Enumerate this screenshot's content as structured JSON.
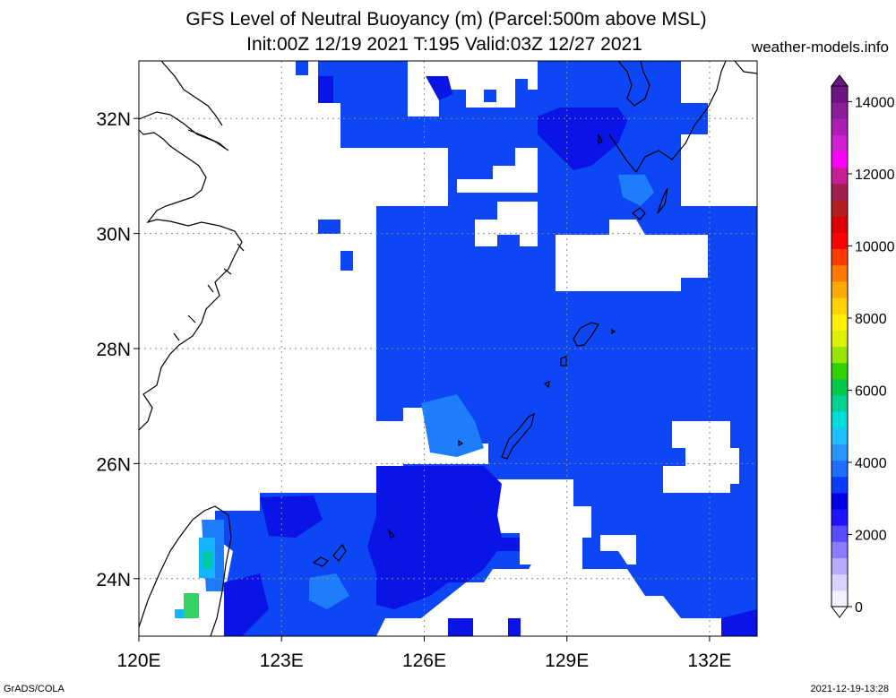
{
  "title_line1": "GFS Level of Neutral Buoyancy (m) (Parcel:500m above MSL)",
  "title_line2": "Init:00Z 12/19 2021 T:195 Valid:03Z 12/27 2021",
  "site": "weather-models.info",
  "credit_left": "GrADS/COLA",
  "credit_right": "2021-12-19-13:28",
  "map": {
    "lon_range": [
      120,
      133
    ],
    "lat_range": [
      23,
      33
    ],
    "lat_labels": [
      "32N",
      "30N",
      "28N",
      "26N",
      "24N"
    ],
    "lon_labels": [
      "120E",
      "123E",
      "126E",
      "129E",
      "132E"
    ]
  },
  "colorbar": {
    "labels": [
      "14000",
      "12000",
      "10000",
      "8000",
      "6000",
      "4000",
      "2000",
      "0"
    ],
    "colors": [
      "#f5f0ff",
      "#dcd2ff",
      "#b8aaff",
      "#8c7cff",
      "#5a4cff",
      "#1e14ff",
      "#0000e6",
      "#0a3cff",
      "#1e6eff",
      "#2896ff",
      "#1ebeff",
      "#00dcdc",
      "#00d296",
      "#00c84b",
      "#32d200",
      "#96e600",
      "#dcf000",
      "#fff000",
      "#ffd200",
      "#ffaa00",
      "#ff7800",
      "#ff3c00",
      "#ff0000",
      "#dc0000",
      "#b41e1e",
      "#a01e50",
      "#c81e96",
      "#ff00ff",
      "#d21ed2",
      "#aa1eb4",
      "#8c1e9b",
      "#6e1482"
    ]
  },
  "colors": {
    "field_base": "#0c46f5",
    "field_deep": "#0a14e6",
    "field_light": "#1e7dfa",
    "field_cyan": "#14b4ff",
    "coast": "#000000",
    "grid": "#8c8c8c"
  }
}
